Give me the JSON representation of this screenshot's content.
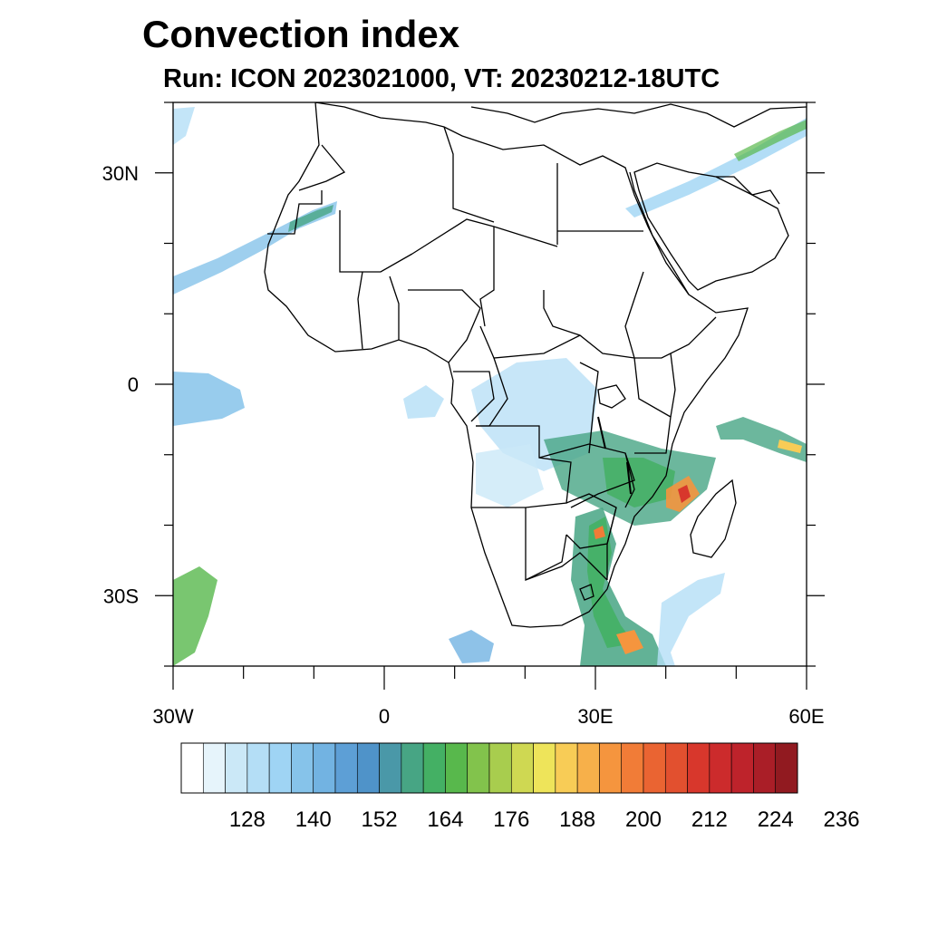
{
  "title": "Convection index",
  "subtitle": "Run: ICON 2023021000,  VT: 20230212-18UTC",
  "map": {
    "region": "Africa",
    "lon_range": [
      -30,
      60
    ],
    "lat_range": [
      -40,
      40
    ],
    "x_ticks": [
      {
        "lon": -30,
        "label": "30W"
      },
      {
        "lon": 0,
        "label": "0"
      },
      {
        "lon": 30,
        "label": "30E"
      },
      {
        "lon": 60,
        "label": "60E"
      }
    ],
    "y_ticks": [
      {
        "lat": 30,
        "label": "30N"
      },
      {
        "lat": 0,
        "label": "0"
      },
      {
        "lat": -30,
        "label": "30S"
      }
    ]
  },
  "colorbar": {
    "colors": [
      "#ffffff",
      "#e6f4fb",
      "#cbe8f7",
      "#b4def6",
      "#9fd4f4",
      "#86c3ea",
      "#72b3e2",
      "#5d9fd6",
      "#4f93c9",
      "#4a98a8",
      "#47a584",
      "#44b064",
      "#58b84c",
      "#82c34c",
      "#a8cd4e",
      "#cfd852",
      "#eee45a",
      "#f8cc56",
      "#f7b04a",
      "#f5953e",
      "#f17c37",
      "#ea6432",
      "#e2502f",
      "#d8372c",
      "#cc2b2c",
      "#be232b",
      "#aa1e27",
      "#911a20"
    ],
    "labels": [
      "128",
      "140",
      "152",
      "164",
      "176",
      "188",
      "200",
      "212",
      "224",
      "236"
    ]
  }
}
